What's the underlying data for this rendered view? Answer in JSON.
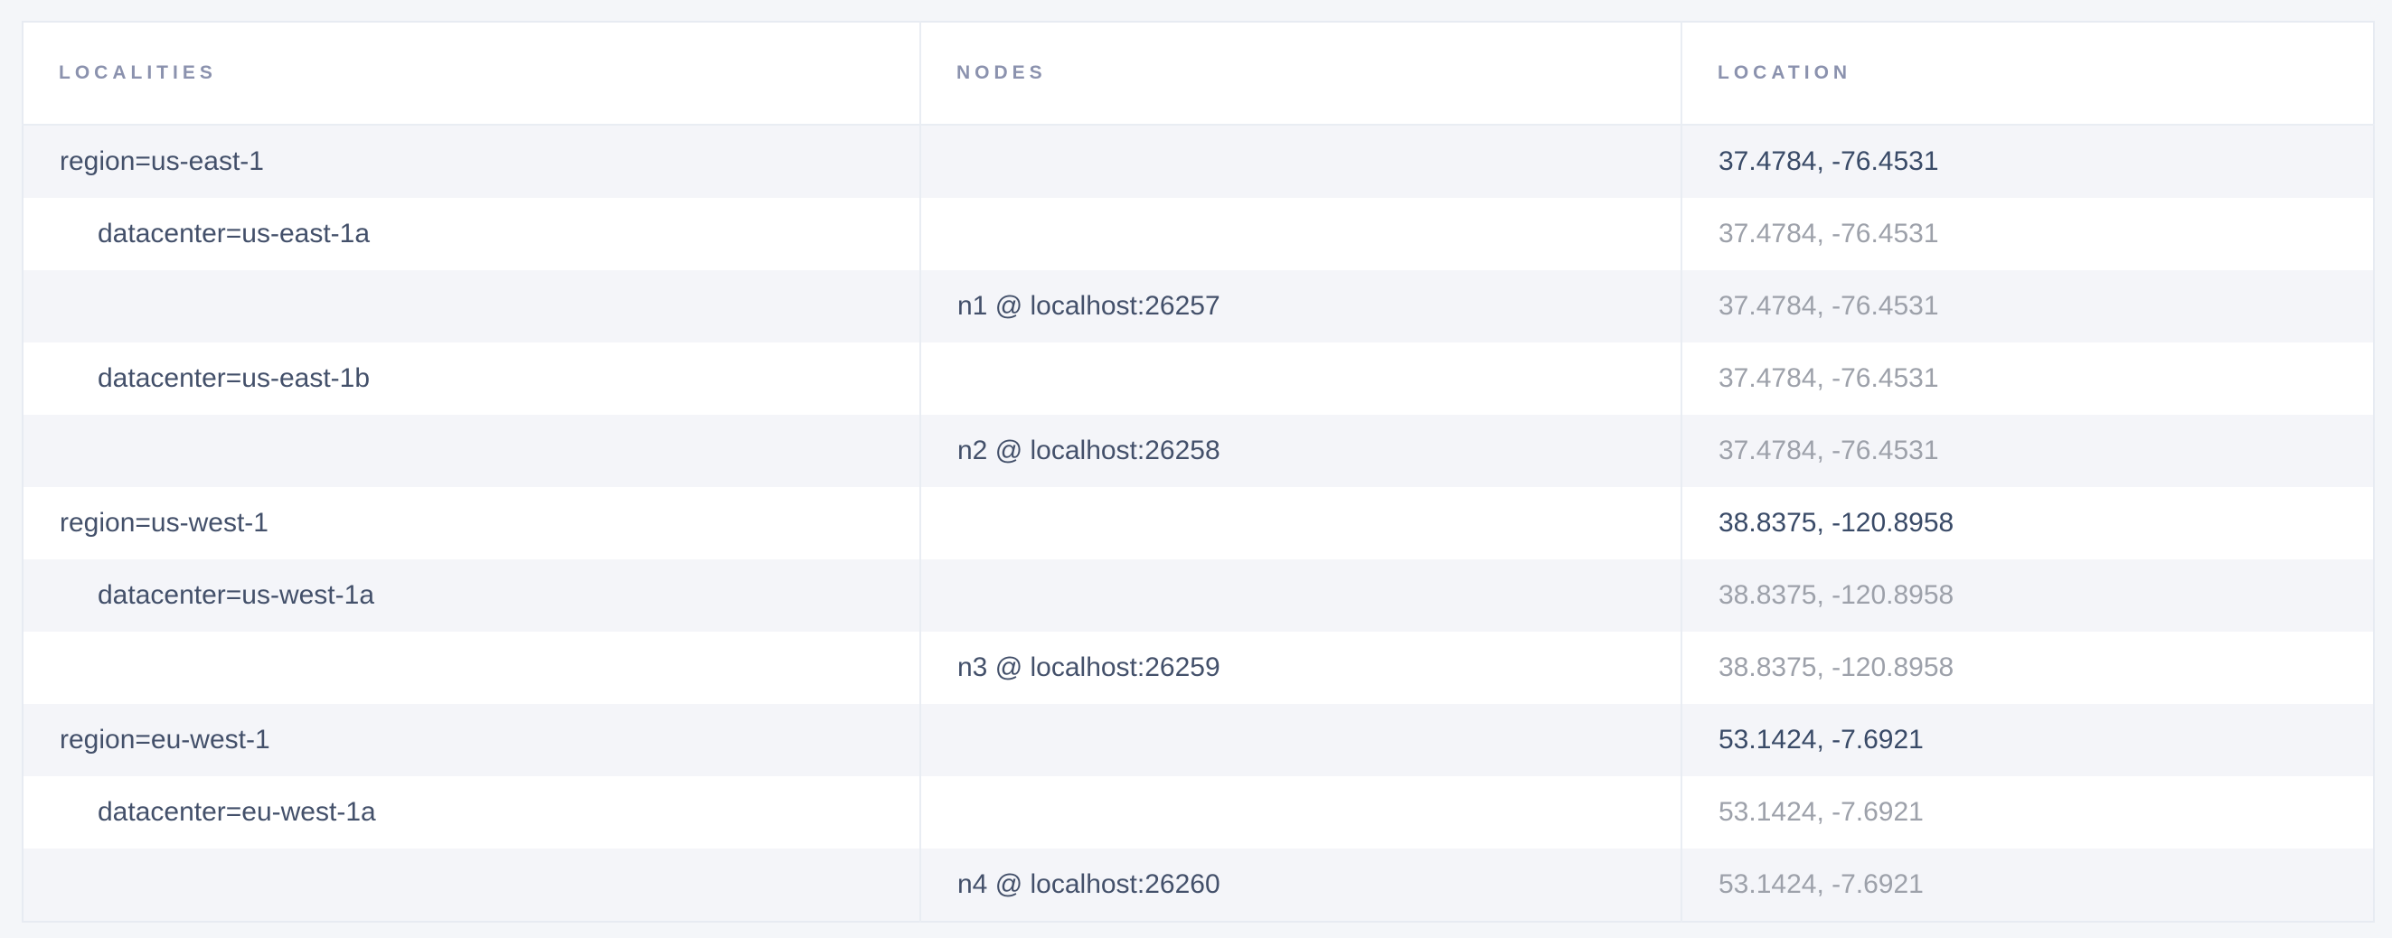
{
  "table": {
    "columns": [
      {
        "label": "LOCALITIES"
      },
      {
        "label": "NODES"
      },
      {
        "label": "LOCATION"
      }
    ],
    "rows": [
      {
        "locality": "region=us-east-1",
        "depth": 1,
        "node": "",
        "location": "37.4784, -76.4531",
        "location_emphasis": "strong"
      },
      {
        "locality": "datacenter=us-east-1a",
        "depth": 2,
        "node": "",
        "location": "37.4784, -76.4531",
        "location_emphasis": "muted"
      },
      {
        "locality": "",
        "depth": 0,
        "node": "n1 @ localhost:26257",
        "location": "37.4784, -76.4531",
        "location_emphasis": "muted"
      },
      {
        "locality": "datacenter=us-east-1b",
        "depth": 2,
        "node": "",
        "location": "37.4784, -76.4531",
        "location_emphasis": "muted"
      },
      {
        "locality": "",
        "depth": 0,
        "node": "n2 @ localhost:26258",
        "location": "37.4784, -76.4531",
        "location_emphasis": "muted"
      },
      {
        "locality": "region=us-west-1",
        "depth": 1,
        "node": "",
        "location": "38.8375, -120.8958",
        "location_emphasis": "strong"
      },
      {
        "locality": "datacenter=us-west-1a",
        "depth": 2,
        "node": "",
        "location": "38.8375, -120.8958",
        "location_emphasis": "muted"
      },
      {
        "locality": "",
        "depth": 0,
        "node": "n3 @ localhost:26259",
        "location": "38.8375, -120.8958",
        "location_emphasis": "muted"
      },
      {
        "locality": "region=eu-west-1",
        "depth": 1,
        "node": "",
        "location": "53.1424, -7.6921",
        "location_emphasis": "strong"
      },
      {
        "locality": "datacenter=eu-west-1a",
        "depth": 2,
        "node": "",
        "location": "53.1424, -7.6921",
        "location_emphasis": "muted"
      },
      {
        "locality": "",
        "depth": 0,
        "node": "n4 @ localhost:26260",
        "location": "53.1424, -7.6921",
        "location_emphasis": "muted"
      }
    ]
  },
  "colors": {
    "page_background": "#f4f6f9",
    "row_stripe": "#f4f5f9",
    "header_text": "#8b92ae",
    "cell_text": "#43506a",
    "location_strong_text": "#394a67",
    "location_muted_text": "#9da1aa",
    "border": "#e9edf3"
  }
}
